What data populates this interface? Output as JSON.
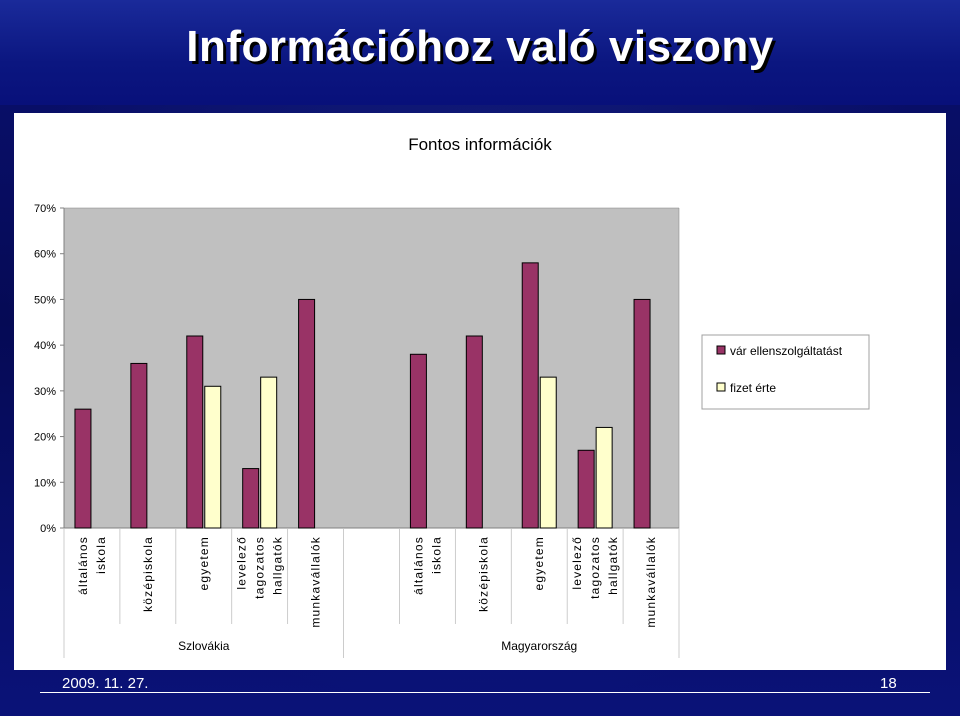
{
  "slide": {
    "title": "Információhoz való viszony",
    "date": "2009. 11. 27.",
    "page": "18"
  },
  "colors": {
    "background": "#0a1070",
    "plot_area": "#c0c0c0",
    "series1": "#993366",
    "series2": "#ffffcc"
  },
  "chart_data": {
    "type": "bar",
    "title": "Fontos információk",
    "categories": [
      "általános iskola",
      "középiskola",
      "egyetem",
      "levelező tagozatos hallgatók",
      "munkavállalók",
      "",
      "általános iskola",
      "középiskola",
      "egyetem",
      "levelező tagozatos hallgatók",
      "munkavállalók"
    ],
    "category_lines": [
      [
        "általános",
        "iskola"
      ],
      [
        "középiskola"
      ],
      [
        "egyetem"
      ],
      [
        "levelező",
        "tagozatos",
        "hallgatók"
      ],
      [
        "munkavállalók"
      ],
      [],
      [
        "általános",
        "iskola"
      ],
      [
        "középiskola"
      ],
      [
        "egyetem"
      ],
      [
        "levelező",
        "tagozatos",
        "hallgatók"
      ],
      [
        "munkavállalók"
      ]
    ],
    "groups": [
      {
        "label": "Szlovákia",
        "from": 0,
        "to": 4
      },
      {
        "label": "Magyarország",
        "from": 6,
        "to": 10
      }
    ],
    "series": [
      {
        "name": "vár ellenszolgáltatást",
        "color": "#993366",
        "values": [
          26,
          36,
          42,
          13,
          50,
          null,
          38,
          42,
          58,
          17,
          50
        ]
      },
      {
        "name": "fizet érte",
        "color": "#ffffcc",
        "values": [
          null,
          null,
          31,
          33,
          null,
          null,
          null,
          null,
          33,
          22,
          null
        ]
      }
    ],
    "yticks": [
      "0%",
      "10%",
      "20%",
      "30%",
      "40%",
      "50%",
      "60%",
      "70%"
    ],
    "ylim": [
      0,
      70
    ],
    "ylabel": "",
    "xlabel": "",
    "grid": false,
    "legend_position": "right"
  }
}
